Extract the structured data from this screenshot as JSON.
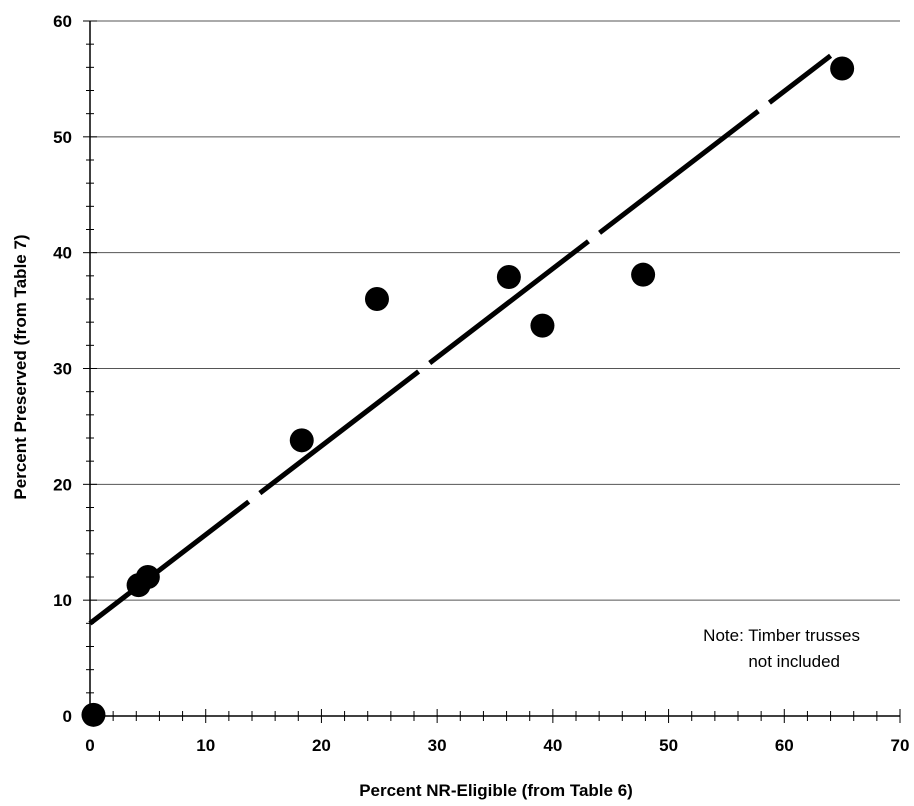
{
  "chart_data": {
    "type": "scatter",
    "xlabel": "Percent NR-Eligible (from Table 6)",
    "ylabel": "Percent Preserved (from Table 7)",
    "xlim": [
      0,
      70
    ],
    "ylim": [
      0,
      60
    ],
    "x_ticks": [
      "0",
      "10",
      "20",
      "30",
      "40",
      "50",
      "60",
      "70"
    ],
    "y_ticks": [
      "0",
      "10",
      "20",
      "30",
      "40",
      "50",
      "60"
    ],
    "grid": "horizontal",
    "points": [
      {
        "x": 0.3,
        "y": 0.1
      },
      {
        "x": 4.2,
        "y": 11.3
      },
      {
        "x": 5.0,
        "y": 12.0
      },
      {
        "x": 18.3,
        "y": 23.8
      },
      {
        "x": 24.8,
        "y": 36.0
      },
      {
        "x": 36.2,
        "y": 37.9
      },
      {
        "x": 39.1,
        "y": 33.7
      },
      {
        "x": 47.8,
        "y": 38.1
      },
      {
        "x": 65.0,
        "y": 55.9
      }
    ],
    "trendline": {
      "style": "dashed",
      "from": {
        "x": 0,
        "y": 8
      },
      "to": {
        "x": 64,
        "y": 57
      }
    },
    "note_lines": [
      "Note: Timber trusses",
      "not included"
    ]
  }
}
